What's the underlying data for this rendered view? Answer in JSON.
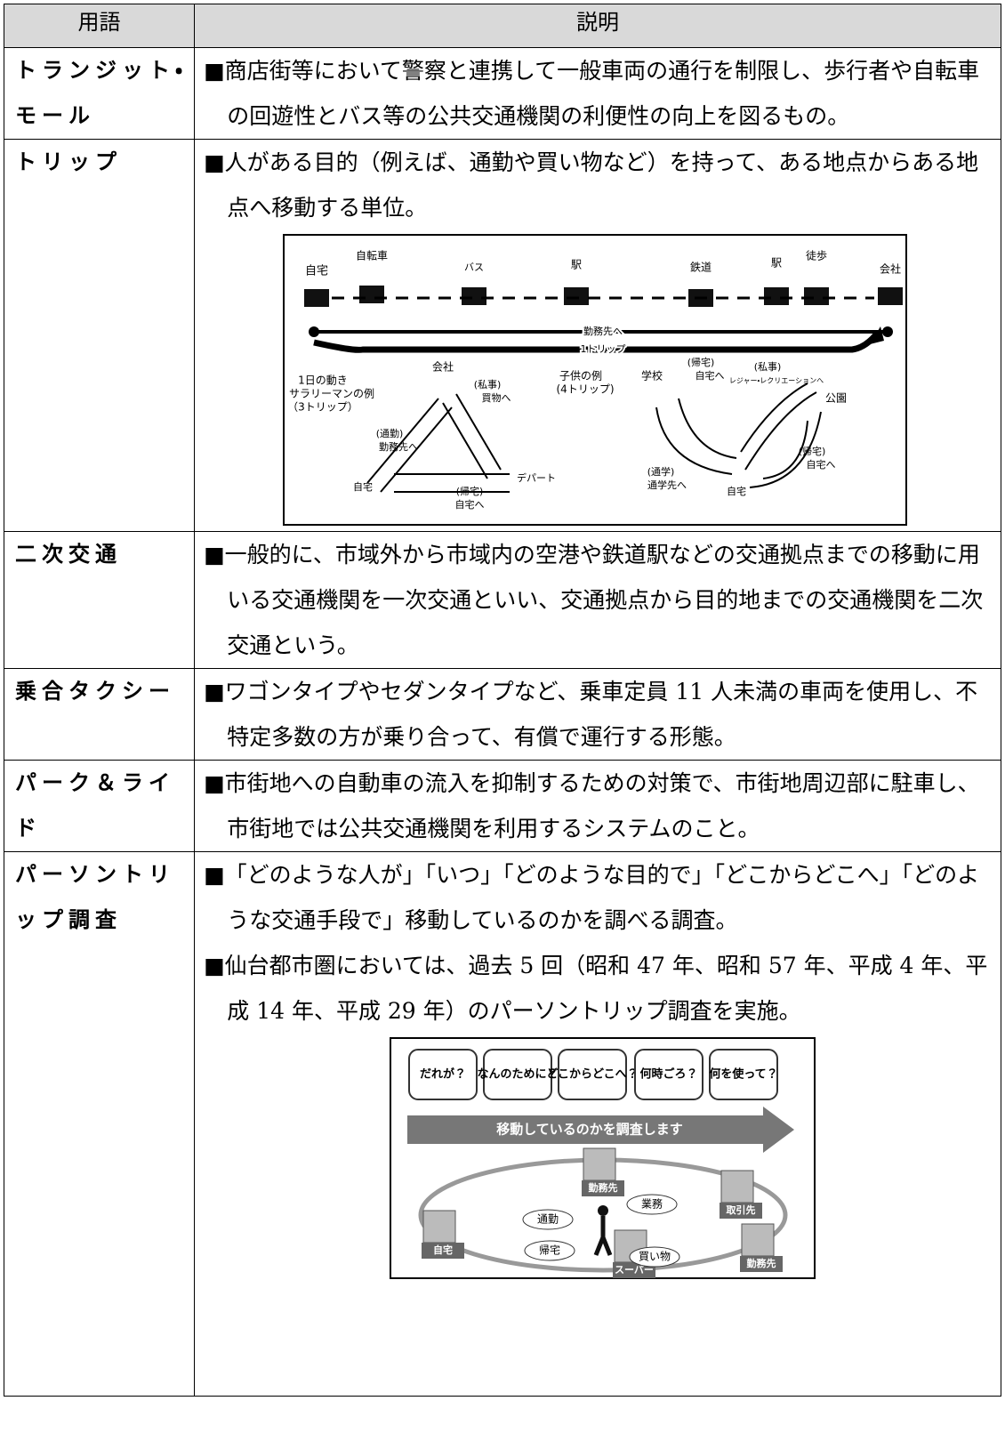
{
  "table": {
    "header": [
      "用語",
      "説明"
    ],
    "rows": [
      {
        "term": "トランジット・モール",
        "items": [
          "■商店街等において警察と連携して一般車両の通行を制限し、歩行者や自転車の回遊性とバス等の公共交通機関の利便性の向上を図るもの。"
        ]
      },
      {
        "term": "トリップ",
        "items": [
          "■人がある目的（例えば、通勤や買い物など）を持って、ある地点からある地点へ移動する単位。"
        ],
        "figure": {
          "labels": [
            "自宅",
            "自転車",
            "バス",
            "駅",
            "鉄道",
            "駅",
            "徒歩",
            "会社",
            "勤務先へ",
            "1トリップ",
            "1日の動き",
            "サラリーマンの例",
            "（3トリップ）",
            "会社",
            "(私事)",
            "買物へ",
            "デパート",
            "(帰宅)",
            "自宅へ",
            "自宅",
            "(通勤)",
            "勤務先へ",
            "子供の例",
            "(4トリップ)",
            "学校",
            "(帰宅)",
            "自宅へ",
            "(私事)",
            "レジャー・レクリエーションへ",
            "公園",
            "(帰宅)",
            "自宅へ",
            "自宅",
            "(通学)",
            "通学先へ"
          ]
        }
      },
      {
        "term": "二次交通",
        "items": [
          "■一般的に、市域外から市域内の空港や鉄道駅などの交通拠点までの移動に用いる交通機関を一次交通といい、交通拠点から目的地までの交通機関を二次交通という。"
        ]
      },
      {
        "term": "乗合タクシー",
        "items": [
          "■ワゴンタイプやセダンタイプなど、乗車定員 11 人未満の車両を使用し、不特定多数の方が乗り合って、有償で運行する形態。"
        ]
      },
      {
        "term": "パーク＆ライド",
        "items": [
          "■市街地への自動車の流入を抑制するための対策で、市街地周辺部に駐車し、市街地では公共交通機関を利用するシステムのこと。"
        ]
      },
      {
        "term": "パーソントリップ調査",
        "items": [
          "■「どのような人が」「いつ」「どのような目的で」「どこからどこへ」「どのような交通手段で」移動しているのかを調べる調査。",
          "■仙台都市圏においては、過去 5 回（昭和 47 年、昭和 57 年、平成 4 年、平成 14 年、平成 29 年）のパーソントリップ調査を実施。"
        ],
        "figure": {
          "questions": [
            "だれが？",
            "なんのために？",
            "どこからどこへ？",
            "何時ごろ？",
            "何を使って？"
          ],
          "banner": "移動しているのかを調査します",
          "places": [
            "勤務先",
            "取引先",
            "自宅",
            "スーパー",
            "勤務先"
          ],
          "bubbles": [
            "通勤",
            "業務",
            "帰宅",
            "買い物"
          ]
        }
      }
    ]
  }
}
